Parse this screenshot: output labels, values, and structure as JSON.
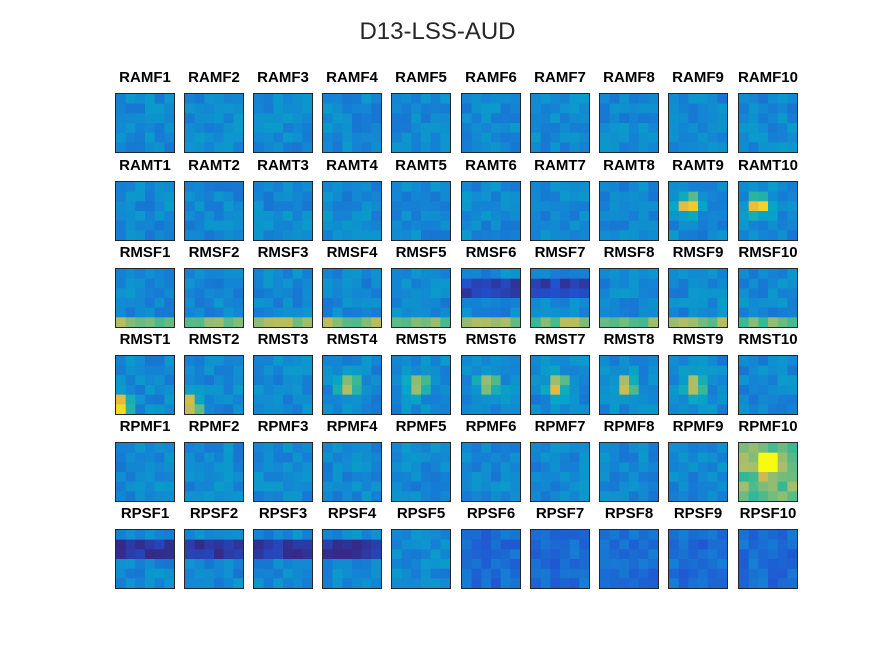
{
  "chart_data": {
    "type": "heatmap",
    "title": "D13-LSS-AUD",
    "colormap": "parula",
    "grid_rows": 6,
    "grid_cols": 10,
    "panels": [
      [
        "RAMF1",
        "RAMF2",
        "RAMF3",
        "RAMF4",
        "RAMF5",
        "RAMF6",
        "RAMF7",
        "RAMF8",
        "RAMF9",
        "RAMF10"
      ],
      [
        "RAMT1",
        "RAMT2",
        "RAMT3",
        "RAMT4",
        "RAMT5",
        "RAMT6",
        "RAMT7",
        "RAMT8",
        "RAMT9",
        "RAMT10"
      ],
      [
        "RMSF1",
        "RMSF2",
        "RMSF3",
        "RMSF4",
        "RMSF5",
        "RMSF6",
        "RMSF7",
        "RMSF8",
        "RMSF9",
        "RMSF10"
      ],
      [
        "RMST1",
        "RMST2",
        "RMST3",
        "RMST4",
        "RMST5",
        "RMST6",
        "RMST7",
        "RMST8",
        "RMST9",
        "RMST10"
      ],
      [
        "RPMF1",
        "RPMF2",
        "RPMF3",
        "RPMF4",
        "RPMF5",
        "RPMF6",
        "RPMF7",
        "RPMF8",
        "RPMF9",
        "RPMF10"
      ],
      [
        "RPSF1",
        "RPSF2",
        "RPSF3",
        "RPSF4",
        "RPSF5",
        "RPSF6",
        "RPSF7",
        "RPSF8",
        "RPSF9",
        "RPSF10"
      ]
    ]
  }
}
